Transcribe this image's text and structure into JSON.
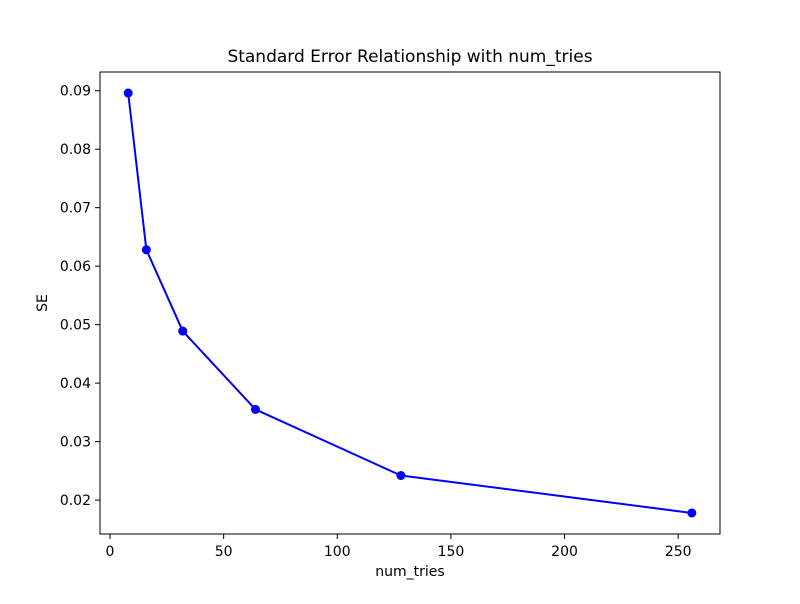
{
  "figure": {
    "background_color": "#ffffff",
    "spine_color": "#000000",
    "text_color": "#000000"
  },
  "chart_data": {
    "type": "line",
    "title": "Standard Error Relationship with num_tries",
    "xlabel": "num_tries",
    "ylabel": "SE",
    "x": [
      8,
      16,
      32,
      64,
      128,
      256
    ],
    "y": [
      0.0896,
      0.0628,
      0.0489,
      0.0355,
      0.0242,
      0.0178
    ],
    "line_color": "#0000ff",
    "marker": "circle",
    "marker_radius": 4.5,
    "line_width": 2,
    "xlim": [
      -4.4,
      268.4
    ],
    "ylim": [
      0.0142,
      0.0932
    ],
    "xticks": [
      0,
      50,
      100,
      150,
      200,
      250
    ],
    "xtick_labels": [
      "0",
      "50",
      "100",
      "150",
      "200",
      "250"
    ],
    "yticks": [
      0.02,
      0.03,
      0.04,
      0.05,
      0.06,
      0.07,
      0.08,
      0.09
    ],
    "ytick_labels": [
      "0.02",
      "0.03",
      "0.04",
      "0.05",
      "0.06",
      "0.07",
      "0.08",
      "0.09"
    ],
    "grid": false,
    "legend": null
  }
}
